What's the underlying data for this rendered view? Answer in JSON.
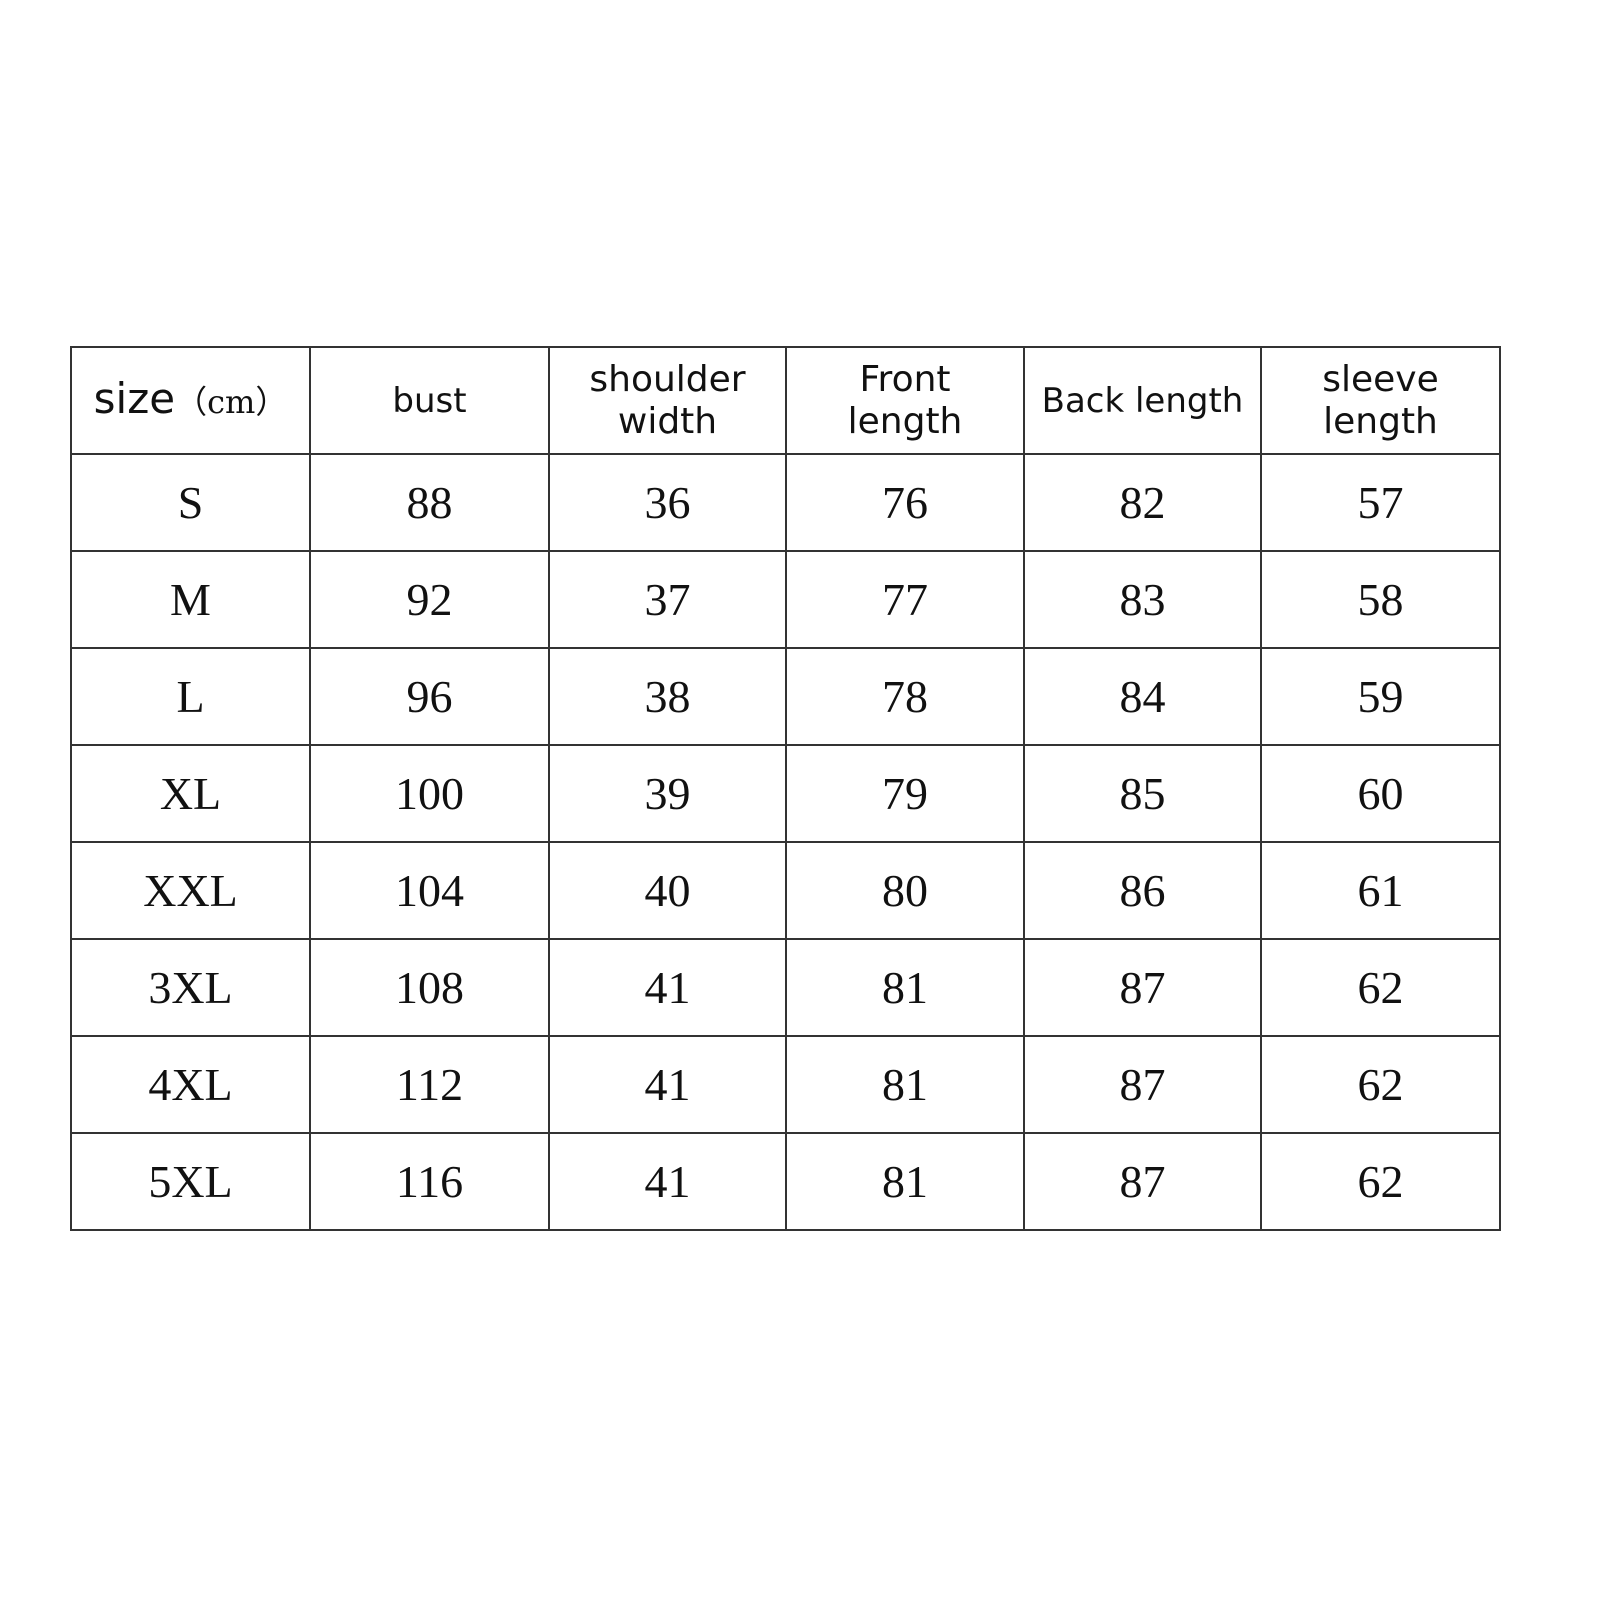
{
  "table": {
    "headers": [
      {
        "label": "size",
        "unit": "（cm）"
      },
      {
        "label": "bust"
      },
      {
        "label": "shoulder width",
        "lines": [
          "shoulder",
          "width"
        ]
      },
      {
        "label": "Front length",
        "lines": [
          "Front",
          "length"
        ]
      },
      {
        "label": "Back length"
      },
      {
        "label": "sleeve length",
        "lines": [
          "sleeve",
          "length"
        ]
      }
    ],
    "rows": [
      [
        "S",
        "88",
        "36",
        "76",
        "82",
        "57"
      ],
      [
        "M",
        "92",
        "37",
        "77",
        "83",
        "58"
      ],
      [
        "L",
        "96",
        "38",
        "78",
        "84",
        "59"
      ],
      [
        "XL",
        "100",
        "39",
        "79",
        "85",
        "60"
      ],
      [
        "XXL",
        "104",
        "40",
        "80",
        "86",
        "61"
      ],
      [
        "3XL",
        "108",
        "41",
        "81",
        "87",
        "62"
      ],
      [
        "4XL",
        "112",
        "41",
        "81",
        "87",
        "62"
      ],
      [
        "5XL",
        "116",
        "41",
        "81",
        "87",
        "62"
      ]
    ]
  }
}
